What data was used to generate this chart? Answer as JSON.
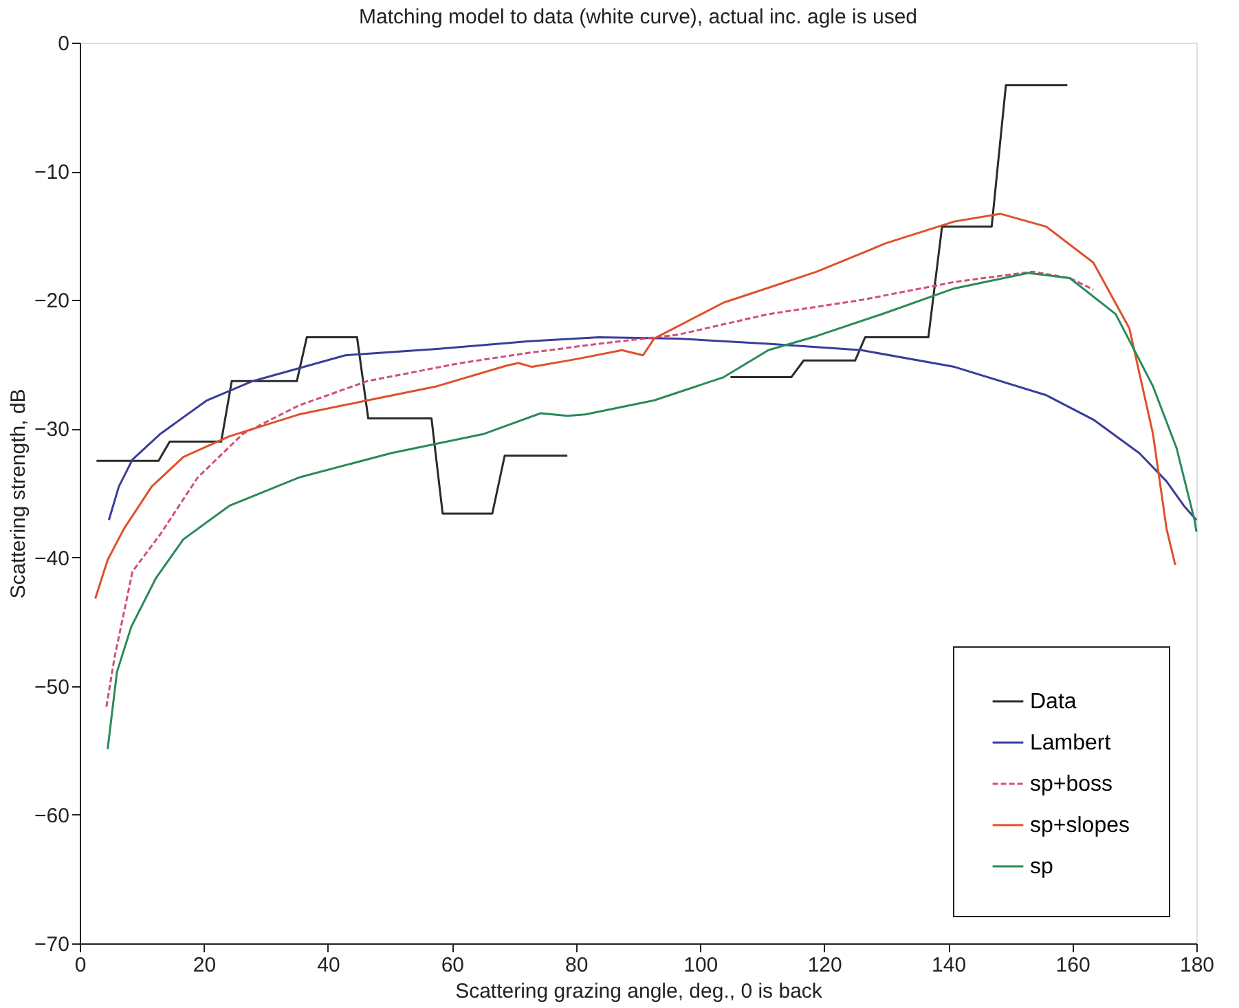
{
  "chart_data": {
    "type": "line",
    "title": "Matching model to data (white curve), actual inc. agle is used",
    "xlabel": "Scattering grazing angle, deg., 0 is back",
    "ylabel": "Scattering strength, dB",
    "xlim": [
      0,
      180
    ],
    "xticks": [
      0,
      20,
      40,
      60,
      80,
      100,
      120,
      140,
      160,
      180
    ],
    "ylim": [
      -70,
      0
    ],
    "yticks": [
      -70,
      -60,
      -50,
      -40,
      -30,
      -20,
      -10,
      0
    ],
    "grid": false,
    "legend": "bottom right",
    "marker": "none",
    "series": [
      {
        "name": "Data",
        "color": "#2a2a2a",
        "line_style": "solid",
        "x": [
          2.7,
          12.7,
          14.5,
          22.8,
          24.5,
          35,
          36.6,
          44.7,
          46.5,
          56.7,
          58.5,
          66.5,
          68.5,
          78.6,
          92,
          104.9,
          114.7,
          116.7,
          125,
          126.6,
          136.8,
          139,
          147,
          149.3,
          159.2
        ],
        "values": [
          -32.5,
          -32.5,
          -31,
          -31,
          -26.3,
          -26.3,
          -22.9,
          -22.9,
          -29.2,
          -29.2,
          -36.6,
          -36.6,
          -32.1,
          -32.1,
          null,
          -26,
          -26,
          -24.7,
          -24.7,
          -22.9,
          -22.9,
          -14.3,
          -14.3,
          -3.3,
          -3.3
        ]
      },
      {
        "name": "Lambert",
        "color": "#3a3d9a",
        "line_style": "solid",
        "x": [
          4.7,
          6.3,
          8.5,
          13,
          20.5,
          27.9,
          42.8,
          57.6,
          72.5,
          83.7,
          96.4,
          111,
          126,
          141,
          155.8,
          163.4,
          170.8,
          175.2,
          178,
          180
        ],
        "values": [
          -37.1,
          -34.5,
          -32.4,
          -30.4,
          -27.8,
          -26.3,
          -24.3,
          -23.8,
          -23.2,
          -22.9,
          -23,
          -23.4,
          -23.9,
          -25.2,
          -27.4,
          -29.3,
          -31.9,
          -34.1,
          -36,
          -37.1
        ]
      },
      {
        "name": "sp+boss",
        "color": "#d0507a",
        "line_style": "dashed",
        "x": [
          4.3,
          5.6,
          8.5,
          13,
          19,
          26.3,
          35.3,
          46.4,
          61.4,
          72.5,
          83.7,
          96.4,
          111,
          126,
          141,
          153.6,
          159.6,
          163.4
        ],
        "values": [
          -51.6,
          -47.8,
          -41.1,
          -38.2,
          -33.8,
          -30.4,
          -28.2,
          -26.3,
          -24.9,
          -24.1,
          -23.4,
          -22.7,
          -21.1,
          -20,
          -18.6,
          -17.8,
          -18.3,
          -19.2
        ]
      },
      {
        "name": "sp+slopes",
        "color": "#e0502a",
        "line_style": "solid",
        "x": [
          2.5,
          4.5,
          7.1,
          11.6,
          16.7,
          24.1,
          35.3,
          46.4,
          57.6,
          68.8,
          70.7,
          72.9,
          80,
          87.4,
          90.8,
          92.6,
          103.8,
          107.6,
          118.8,
          129.9,
          141,
          148.4,
          155.8,
          163.4,
          169.2,
          173,
          175.2,
          176.6
        ],
        "values": [
          -43.2,
          -40.2,
          -37.8,
          -34.5,
          -32.2,
          -30.6,
          -28.9,
          -27.8,
          -26.7,
          -25.1,
          -24.9,
          -25.2,
          -24.6,
          -23.9,
          -24.3,
          -23,
          -20.2,
          -19.6,
          -17.8,
          -15.6,
          -13.9,
          -13.3,
          -14.3,
          -17.1,
          -22.2,
          -30.4,
          -37.8,
          -40.6
        ]
      },
      {
        "name": "sp",
        "color": "#2a8a5a",
        "line_style": "solid",
        "x": [
          4.5,
          6,
          8.3,
          12.3,
          16.7,
          24.1,
          35.3,
          50.2,
          65.2,
          74.3,
          78.6,
          81.5,
          92.6,
          103.8,
          111,
          118.8,
          129.9,
          141,
          152.9,
          159.6,
          167,
          173,
          176.8,
          179.7,
          180
        ],
        "values": [
          -54.9,
          -48.9,
          -45.4,
          -41.6,
          -38.6,
          -36,
          -33.8,
          -31.9,
          -30.4,
          -28.8,
          -29,
          -28.9,
          -27.8,
          -26,
          -23.9,
          -22.8,
          -21,
          -19.1,
          -17.9,
          -18.3,
          -21.1,
          -26.7,
          -31.5,
          -37.1,
          -38
        ]
      }
    ]
  }
}
